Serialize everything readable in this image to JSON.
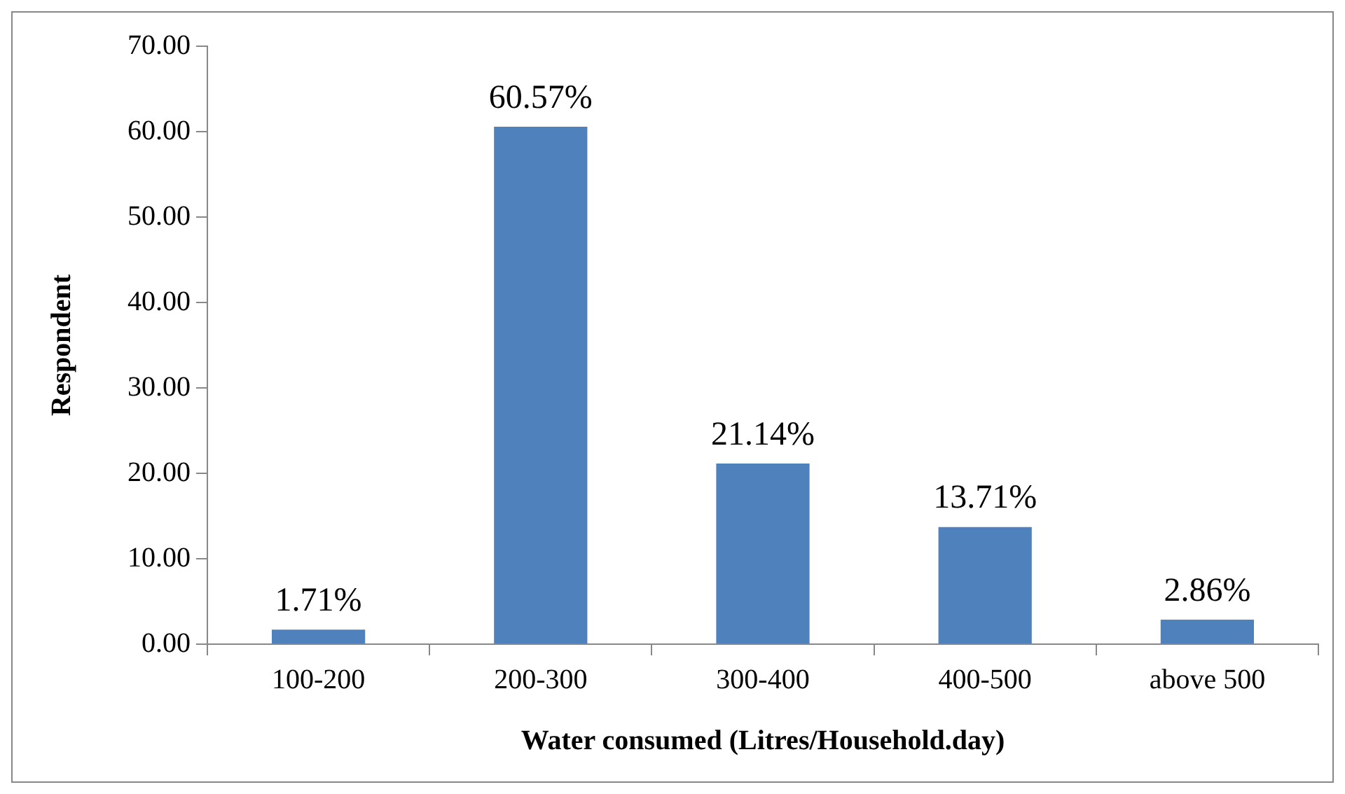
{
  "chart_data": {
    "type": "bar",
    "xlabel": "Water consumed (Litres/Household.day)",
    "ylabel": "Respondent",
    "categories": [
      "100-200",
      "200-300",
      "300-400",
      "400-500",
      "above 500"
    ],
    "values": [
      1.71,
      60.57,
      21.14,
      13.71,
      2.86
    ],
    "value_labels": [
      "1.71%",
      "60.57%",
      "21.14%",
      "13.71%",
      "2.86%"
    ],
    "color": "#4f81bd",
    "ylim": [
      0,
      70
    ],
    "yticks": [
      {
        "value": 0,
        "label": "0.00"
      },
      {
        "value": 10,
        "label": "10.00"
      },
      {
        "value": 20,
        "label": "20.00"
      },
      {
        "value": 30,
        "label": "30.00"
      },
      {
        "value": 40,
        "label": "40.00"
      },
      {
        "value": 50,
        "label": "50.00"
      },
      {
        "value": 60,
        "label": "60.00"
      },
      {
        "value": 70,
        "label": "70.00"
      }
    ],
    "grid": false,
    "legend": false
  }
}
